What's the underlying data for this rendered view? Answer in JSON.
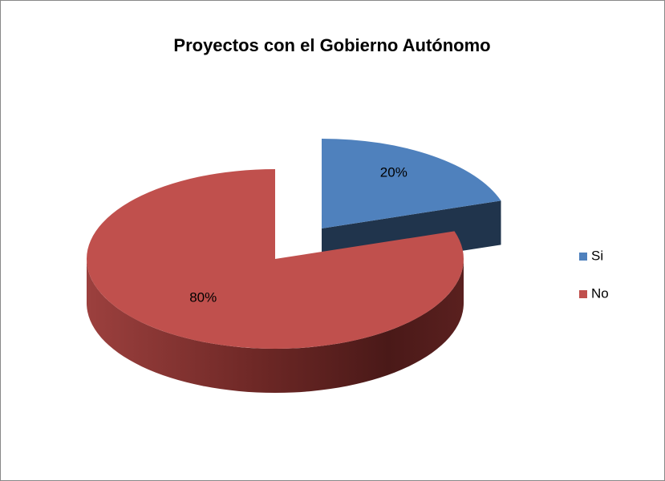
{
  "chart_data": {
    "type": "pie",
    "title": "Proyectos con el Gobierno Autónomo",
    "categories": [
      "Si",
      "No"
    ],
    "values": [
      20,
      80
    ],
    "value_labels": [
      "20%",
      "80%"
    ],
    "colors": [
      "#4f81bd",
      "#c0504d"
    ],
    "legend": "right"
  }
}
